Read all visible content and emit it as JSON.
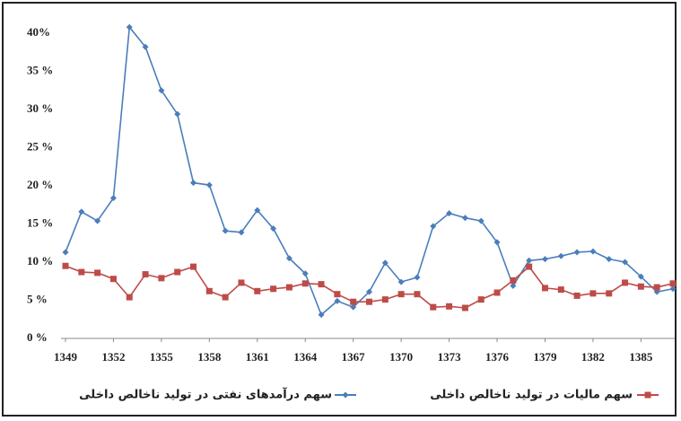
{
  "chart_data": {
    "type": "line",
    "x": [
      1349,
      1350,
      1351,
      1352,
      1353,
      1354,
      1355,
      1356,
      1357,
      1358,
      1359,
      1360,
      1361,
      1362,
      1363,
      1364,
      1365,
      1366,
      1367,
      1368,
      1369,
      1370,
      1371,
      1372,
      1373,
      1374,
      1375,
      1376,
      1377,
      1378,
      1379,
      1380,
      1381,
      1382,
      1383,
      1384,
      1385,
      1386,
      1387
    ],
    "series": [
      {
        "name": "سهم درآمدهای نفتی در تولید ناخالص داخلی",
        "color": "#4a7ebb",
        "values": [
          11.3,
          16.6,
          15.4,
          18.4,
          40.8,
          38.2,
          32.5,
          29.4,
          20.4,
          20.1,
          14.1,
          13.9,
          16.8,
          14.4,
          10.5,
          8.5,
          3.1,
          4.9,
          4.1,
          6.1,
          9.9,
          7.4,
          8.0,
          14.7,
          16.4,
          15.8,
          15.4,
          12.6,
          6.9,
          10.2,
          10.4,
          10.8,
          11.3,
          11.4,
          10.4,
          10.0,
          8.1,
          6.1,
          6.5
        ]
      },
      {
        "name": "سهم مالیات در تولید ناخالص داخلی",
        "color": "#be4b48",
        "values": [
          9.5,
          8.7,
          8.6,
          7.8,
          5.4,
          8.4,
          7.9,
          8.7,
          9.4,
          6.2,
          5.4,
          7.3,
          6.2,
          6.5,
          6.7,
          7.2,
          7.1,
          5.8,
          4.8,
          4.8,
          5.1,
          5.8,
          5.8,
          4.1,
          4.2,
          4.0,
          5.1,
          6.0,
          7.6,
          9.4,
          6.6,
          6.4,
          5.6,
          5.9,
          5.9,
          7.3,
          6.8,
          6.7,
          7.2
        ]
      }
    ],
    "xlim": [
      1349,
      1387
    ],
    "xticks": [
      1349,
      1352,
      1355,
      1358,
      1361,
      1364,
      1367,
      1370,
      1373,
      1376,
      1379,
      1382,
      1385
    ],
    "ylim": [
      0,
      40
    ],
    "yticks": [
      {
        "value": 0,
        "label": "0 %"
      },
      {
        "value": 5,
        "label": "5 %"
      },
      {
        "value": 10,
        "label": "10 %"
      },
      {
        "value": 15,
        "label": "15 %"
      },
      {
        "value": 20,
        "label": "20 %"
      },
      {
        "value": 25,
        "label": "25 %"
      },
      {
        "value": 30,
        "label": "30 %"
      },
      {
        "value": 35,
        "label": "35 %"
      },
      {
        "value": 40,
        "label": "40%"
      }
    ]
  }
}
